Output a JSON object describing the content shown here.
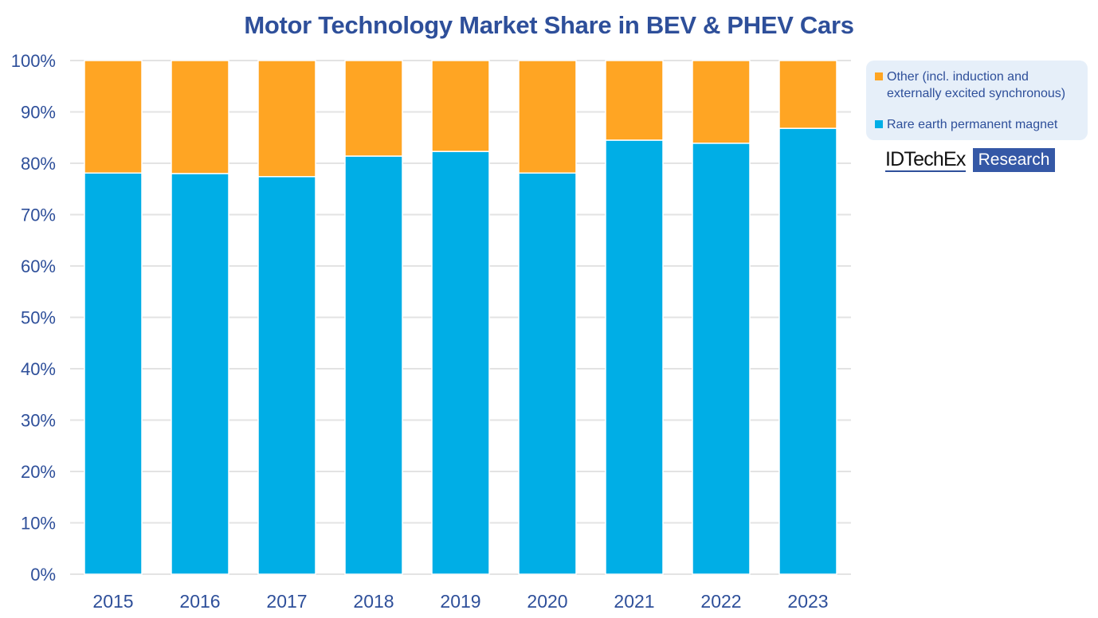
{
  "chart_data": {
    "type": "bar",
    "stacked": true,
    "title": "Motor Technology Market Share in BEV & PHEV Cars",
    "xlabel": "",
    "ylabel": "",
    "ylim": [
      0,
      100
    ],
    "yticks": [
      "0%",
      "10%",
      "20%",
      "30%",
      "40%",
      "50%",
      "60%",
      "70%",
      "80%",
      "90%",
      "100%"
    ],
    "grid": true,
    "legend_position": "right",
    "categories": [
      "2015",
      "2016",
      "2017",
      "2018",
      "2019",
      "2020",
      "2021",
      "2022",
      "2023"
    ],
    "series": [
      {
        "name": "Rare earth permanent magnet",
        "color": "#00AEE6",
        "values": [
          78.1,
          78.0,
          77.4,
          81.4,
          82.3,
          78.1,
          84.5,
          83.9,
          86.8
        ]
      },
      {
        "name": "Other (incl. induction and externally excited synchronous)",
        "color": "#FFA523",
        "values": [
          21.9,
          22.0,
          22.6,
          18.6,
          17.7,
          21.9,
          15.5,
          16.1,
          13.2
        ]
      }
    ]
  },
  "legend": {
    "items": [
      {
        "line1": "Other (incl. induction and",
        "line2": "externally excited synchronous)",
        "color": "#FFA523"
      },
      {
        "line1": "Rare earth permanent magnet",
        "color": "#00AEE6"
      }
    ]
  },
  "branding": {
    "name": "IDTechEx",
    "tag": "Research"
  },
  "colors": {
    "text": "#2E4F9A",
    "grid": "#E3E3E3"
  }
}
